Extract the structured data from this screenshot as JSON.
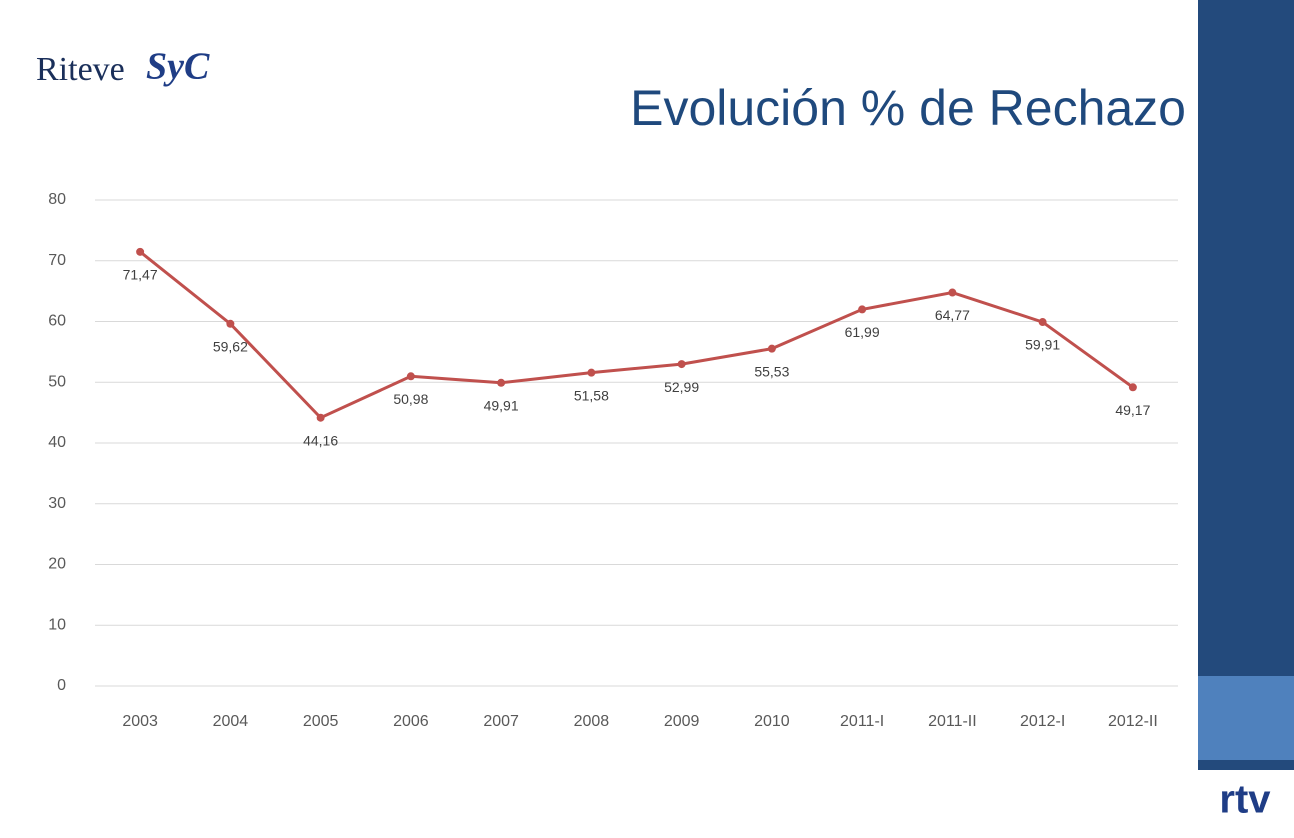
{
  "logo": {
    "name": "Riteve",
    "script": "SyC"
  },
  "footer_logo": "rtv",
  "chart_data": {
    "type": "line",
    "title": "Evolución % de Rechazo",
    "categories": [
      "2003",
      "2004",
      "2005",
      "2006",
      "2007",
      "2008",
      "2009",
      "2010",
      "2011-I",
      "2011-II",
      "2012-I",
      "2012-II"
    ],
    "series": [
      {
        "name": "% de Rechazo",
        "color": "#c0504d",
        "values": [
          71.47,
          59.62,
          44.16,
          50.98,
          49.91,
          51.58,
          52.99,
          55.53,
          61.99,
          64.77,
          59.91,
          49.17
        ],
        "value_labels": [
          "71,47",
          "59,62",
          "44,16",
          "50,98",
          "49,91",
          "51,58",
          "52,99",
          "55,53",
          "61,99",
          "64,77",
          "59,91",
          "49,17"
        ]
      }
    ],
    "ylim": [
      0,
      80
    ],
    "yticks": [
      0,
      10,
      20,
      30,
      40,
      50,
      60,
      70,
      80
    ],
    "grid": true
  }
}
